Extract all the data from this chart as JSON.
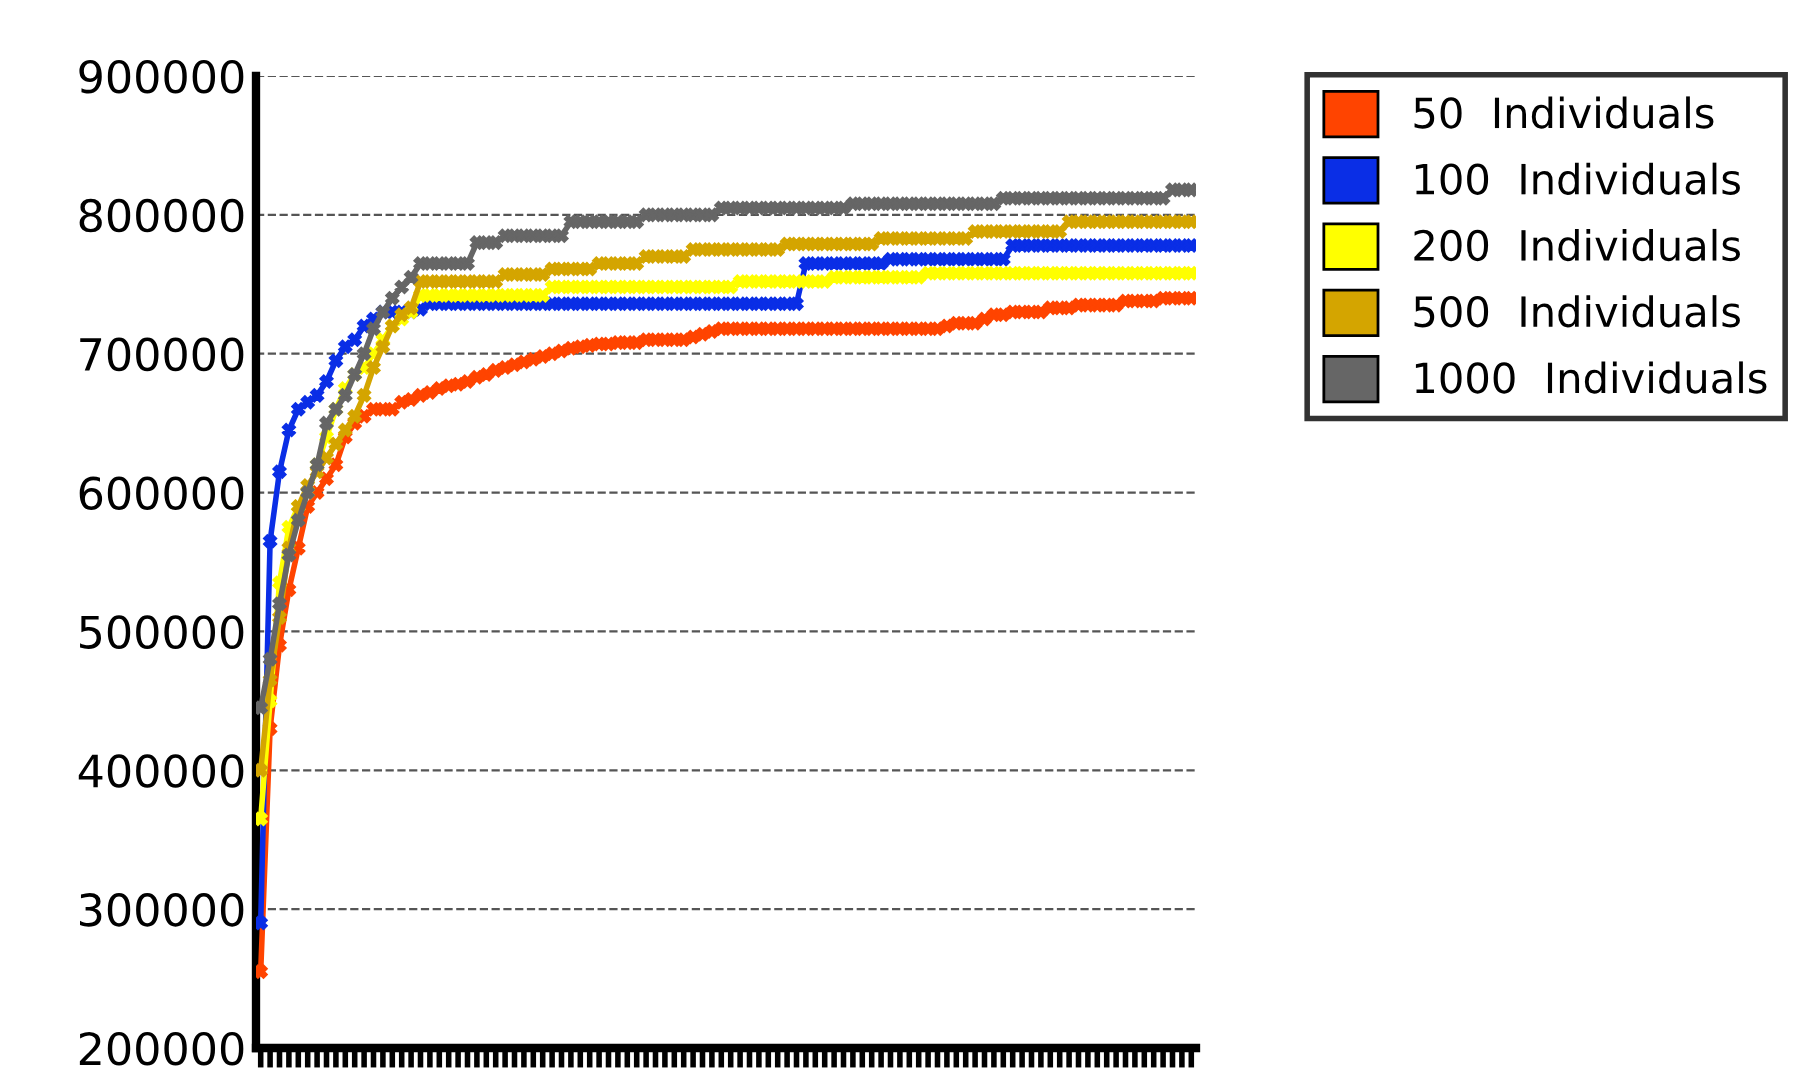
{
  "chart_data": {
    "type": "line",
    "categories": [
      null,
      null,
      null,
      null,
      null,
      null,
      null,
      null,
      null,
      null,
      null,
      null,
      null,
      null,
      null,
      null,
      null,
      null,
      null,
      null,
      null,
      null,
      null,
      null,
      null,
      null,
      null,
      null,
      null,
      null,
      null,
      null,
      null,
      null,
      null,
      null,
      null,
      null,
      null,
      null,
      null,
      null,
      null,
      null,
      null,
      null,
      null,
      null,
      null,
      null,
      null,
      null,
      null,
      null,
      null,
      null,
      null,
      null,
      null,
      null,
      null,
      null,
      null,
      null,
      null,
      null,
      null,
      null,
      null,
      null,
      null,
      null,
      null,
      null,
      null,
      null,
      null,
      null,
      null,
      null,
      null,
      null,
      null,
      null,
      null,
      null,
      null,
      null,
      null,
      null,
      null,
      null,
      null,
      null,
      null,
      null,
      null,
      null,
      null,
      null
    ],
    "ylim": [
      200000,
      900000
    ],
    "yticks": [
      200000,
      300000,
      400000,
      500000,
      600000,
      700000,
      800000,
      900000
    ],
    "grid": "y",
    "legend": "top right",
    "marker": "cross",
    "line_style": "solid",
    "tick_labels": "y",
    "series": [
      {
        "name": "50  Individuals",
        "color": "#ff4400",
        "values": [
          255000,
          430000,
          490000,
          530000,
          560000,
          590000,
          600000,
          610000,
          620000,
          640000,
          650000,
          655000,
          660000,
          660000,
          660000,
          665000,
          667000,
          670000,
          672000,
          675000,
          677000,
          678000,
          680000,
          683000,
          685000,
          688000,
          690000,
          692000,
          694000,
          696000,
          698000,
          700000,
          702000,
          704000,
          705000,
          706000,
          707000,
          707000,
          708000,
          708000,
          708000,
          710000,
          710000,
          710000,
          710000,
          710000,
          712000,
          714000,
          716000,
          718000,
          718000,
          718000,
          718000,
          718000,
          718000,
          718000,
          718000,
          718000,
          718000,
          718000,
          718000,
          718000,
          718000,
          718000,
          718000,
          718000,
          718000,
          718000,
          718000,
          718000,
          718000,
          718000,
          718000,
          720000,
          722000,
          722000,
          722000,
          725000,
          728000,
          728000,
          730000,
          730000,
          730000,
          730000,
          733000,
          733000,
          733000,
          735000,
          735000,
          735000,
          735000,
          735000,
          738000,
          738000,
          738000,
          738000,
          740000,
          740000,
          740000,
          740000
        ]
      },
      {
        "name": "100  Individuals",
        "color": "#0a2ee6",
        "values": [
          290000,
          565000,
          615000,
          645000,
          660000,
          665000,
          670000,
          680000,
          695000,
          705000,
          710000,
          720000,
          725000,
          730000,
          730000,
          730000,
          730000,
          732000,
          736000,
          736000,
          736000,
          736000,
          736000,
          736000,
          736000,
          736000,
          736000,
          736000,
          736000,
          736000,
          736000,
          736000,
          736000,
          736000,
          736000,
          736000,
          736000,
          736000,
          736000,
          736000,
          736000,
          736000,
          736000,
          736000,
          736000,
          736000,
          736000,
          736000,
          736000,
          736000,
          736000,
          736000,
          736000,
          736000,
          736000,
          736000,
          736000,
          736000,
          765000,
          765000,
          765000,
          765000,
          765000,
          765000,
          765000,
          765000,
          765000,
          768000,
          768000,
          768000,
          768000,
          768000,
          768000,
          768000,
          768000,
          768000,
          768000,
          768000,
          768000,
          768000,
          778000,
          778000,
          778000,
          778000,
          778000,
          778000,
          778000,
          778000,
          778000,
          778000,
          778000,
          778000,
          778000,
          778000,
          778000,
          778000,
          778000,
          778000,
          778000,
          778000
        ]
      },
      {
        "name": "200  Individuals",
        "color": "#ffff00",
        "values": [
          365000,
          450000,
          535000,
          575000,
          590000,
          600000,
          620000,
          640000,
          660000,
          675000,
          685000,
          690000,
          700000,
          710000,
          720000,
          725000,
          730000,
          742000,
          742000,
          742000,
          742000,
          742000,
          742000,
          742000,
          742000,
          742000,
          742000,
          742000,
          742000,
          742000,
          742000,
          748000,
          748000,
          748000,
          748000,
          748000,
          748000,
          748000,
          748000,
          748000,
          748000,
          748000,
          748000,
          748000,
          748000,
          748000,
          748000,
          748000,
          748000,
          748000,
          748000,
          752000,
          752000,
          752000,
          752000,
          752000,
          752000,
          752000,
          752000,
          752000,
          752000,
          755000,
          755000,
          755000,
          755000,
          755000,
          755000,
          755000,
          755000,
          755000,
          755000,
          758000,
          758000,
          758000,
          758000,
          758000,
          758000,
          758000,
          758000,
          758000,
          758000,
          758000,
          758000,
          758000,
          758000,
          758000,
          758000,
          758000,
          758000,
          758000,
          758000,
          758000,
          758000,
          758000,
          758000,
          758000,
          758000,
          758000,
          758000,
          758000
        ]
      },
      {
        "name": "500  Individuals",
        "color": "#d4a500",
        "values": [
          400000,
          465000,
          510000,
          560000,
          590000,
          605000,
          615000,
          625000,
          635000,
          645000,
          655000,
          670000,
          690000,
          705000,
          720000,
          728000,
          733000,
          752000,
          752000,
          752000,
          752000,
          752000,
          752000,
          752000,
          752000,
          752000,
          757000,
          757000,
          757000,
          757000,
          757000,
          761000,
          761000,
          761000,
          761000,
          761000,
          765000,
          765000,
          765000,
          765000,
          765000,
          770000,
          770000,
          770000,
          770000,
          770000,
          775000,
          775000,
          775000,
          775000,
          775000,
          775000,
          775000,
          775000,
          775000,
          775000,
          779000,
          779000,
          779000,
          779000,
          779000,
          779000,
          779000,
          779000,
          779000,
          779000,
          783000,
          783000,
          783000,
          783000,
          783000,
          783000,
          783000,
          783000,
          783000,
          783000,
          788000,
          788000,
          788000,
          788000,
          788000,
          788000,
          788000,
          788000,
          788000,
          788000,
          795000,
          795000,
          795000,
          795000,
          795000,
          795000,
          795000,
          795000,
          795000,
          795000,
          795000,
          795000,
          795000,
          795000
        ]
      },
      {
        "name": "1000  Individuals",
        "color": "#666666",
        "values": [
          445000,
          480000,
          520000,
          555000,
          580000,
          600000,
          620000,
          650000,
          660000,
          670000,
          685000,
          700000,
          718000,
          730000,
          740000,
          748000,
          755000,
          765000,
          765000,
          765000,
          765000,
          765000,
          765000,
          780000,
          780000,
          780000,
          785000,
          785000,
          785000,
          785000,
          785000,
          785000,
          785000,
          795000,
          795000,
          795000,
          795000,
          795000,
          795000,
          795000,
          795000,
          800000,
          800000,
          800000,
          800000,
          800000,
          800000,
          800000,
          800000,
          805000,
          805000,
          805000,
          805000,
          805000,
          805000,
          805000,
          805000,
          805000,
          805000,
          805000,
          805000,
          805000,
          805000,
          808000,
          808000,
          808000,
          808000,
          808000,
          808000,
          808000,
          808000,
          808000,
          808000,
          808000,
          808000,
          808000,
          808000,
          808000,
          808000,
          812000,
          812000,
          812000,
          812000,
          812000,
          812000,
          812000,
          812000,
          812000,
          812000,
          812000,
          812000,
          812000,
          812000,
          812000,
          812000,
          812000,
          812000,
          818000,
          818000,
          818000
        ]
      }
    ]
  }
}
